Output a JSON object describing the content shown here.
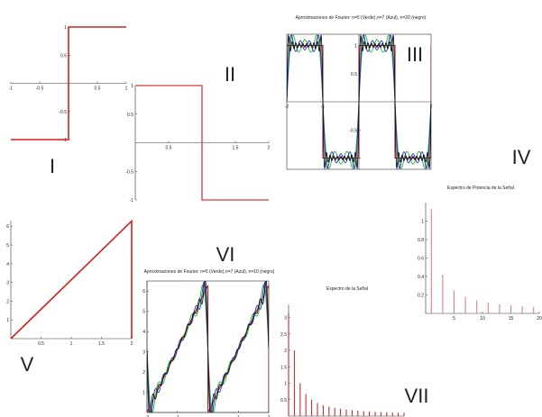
{
  "chart_data": [
    {
      "id": "I",
      "panel_label": "I",
      "type": "line",
      "title": "",
      "xlim": [
        -1,
        1
      ],
      "ylim": [
        -1,
        1
      ],
      "x_ticks": [
        -1,
        -0.5,
        0.5,
        1
      ],
      "y_ticks": [
        -1,
        -0.5,
        0.5,
        1
      ],
      "series": [
        {
          "color": "#d42020",
          "points": [
            [
              -1,
              -1
            ],
            [
              0,
              -1
            ],
            [
              0,
              1
            ],
            [
              1,
              1
            ]
          ]
        }
      ]
    },
    {
      "id": "II",
      "panel_label": "II",
      "type": "line",
      "title": "",
      "xlim": [
        0,
        2
      ],
      "ylim": [
        -1,
        1
      ],
      "x_ticks": [
        0.5,
        1,
        1.5,
        2
      ],
      "y_ticks": [
        -1,
        -0.5,
        0.5,
        1
      ],
      "series": [
        {
          "color": "#e05a5a",
          "points": [
            [
              0,
              1
            ],
            [
              1,
              1
            ],
            [
              1,
              -1
            ],
            [
              2,
              -1
            ]
          ]
        }
      ]
    },
    {
      "id": "III",
      "panel_label": "III",
      "type": "line",
      "title": "Aproximaciones de Fourier: n=5 (Verde),n=7 (Azul), n=20 (negro)",
      "xlim": [
        -2,
        2
      ],
      "ylim": [
        -1.2,
        1.2
      ],
      "x_ticks": [
        -2,
        -1,
        1,
        2
      ],
      "y_ticks": [
        -1,
        -0.5,
        0.5,
        1
      ],
      "target": {
        "color": "#c02020",
        "kind": "square"
      },
      "series": [
        {
          "n": 5,
          "color": "#22bb22"
        },
        {
          "n": 7,
          "color": "#2b2bd0"
        },
        {
          "n": 20,
          "color": "#111111"
        }
      ]
    },
    {
      "id": "IV",
      "panel_label": "IV",
      "type": "bar",
      "title": "Espectro de Potencia de la Señal",
      "xlim": [
        0,
        20
      ],
      "ylim": [
        0,
        1.2
      ],
      "x_ticks": [
        5,
        10,
        15,
        20
      ],
      "y_ticks": [
        0.2,
        0.4,
        0.6,
        0.8,
        1
      ],
      "color": "#e08080",
      "x": [
        1,
        3,
        5,
        7,
        9,
        11,
        13,
        15,
        17,
        19
      ],
      "values": [
        1.13,
        0.42,
        0.25,
        0.18,
        0.14,
        0.12,
        0.1,
        0.09,
        0.08,
        0.07
      ]
    },
    {
      "id": "V",
      "panel_label": "V",
      "type": "line",
      "title": "",
      "xlim": [
        0,
        2
      ],
      "ylim": [
        0,
        6.3
      ],
      "x_ticks": [
        0.5,
        1,
        1.5,
        2
      ],
      "y_ticks": [
        1,
        2,
        3,
        4,
        5,
        6
      ],
      "series": [
        {
          "color": "#d42020",
          "points": [
            [
              0,
              0
            ],
            [
              2,
              6.28
            ],
            [
              2,
              0
            ]
          ]
        }
      ]
    },
    {
      "id": "VI",
      "panel_label": "VI",
      "type": "line",
      "title": "Aproximaciones de Fourier: n=5 (Verde),n=7 (Azul), n=10 (negro)",
      "xlim": [
        -2,
        2
      ],
      "ylim": [
        0,
        6.5
      ],
      "x_ticks": [
        -2,
        -1,
        1,
        2
      ],
      "y_ticks": [
        1,
        2,
        3,
        4,
        5,
        6
      ],
      "target": {
        "color": "#c02020",
        "kind": "sawtooth"
      },
      "series": [
        {
          "n": 5,
          "color": "#22bb22"
        },
        {
          "n": 7,
          "color": "#2b2bd0"
        },
        {
          "n": 10,
          "color": "#111111"
        }
      ]
    },
    {
      "id": "VII",
      "panel_label": "VII",
      "type": "bar",
      "title": "Espectro de la Señal",
      "xlim": [
        0,
        20
      ],
      "ylim": [
        0,
        3.4
      ],
      "x_ticks": [
        2,
        4,
        6,
        8,
        10,
        12,
        14,
        16,
        18,
        20
      ],
      "y_ticks": [
        0.5,
        1,
        1.5,
        2,
        2.5,
        3
      ],
      "color": "#c03030",
      "x": [
        0,
        1,
        2,
        3,
        4,
        5,
        6,
        7,
        8,
        9,
        10,
        11,
        12,
        13,
        14,
        15,
        16,
        17,
        18,
        19,
        20
      ],
      "values": [
        3.14,
        2.0,
        1.0,
        0.67,
        0.5,
        0.4,
        0.33,
        0.29,
        0.25,
        0.22,
        0.2,
        0.18,
        0.17,
        0.15,
        0.14,
        0.13,
        0.12,
        0.12,
        0.11,
        0.1,
        0.1
      ]
    }
  ]
}
